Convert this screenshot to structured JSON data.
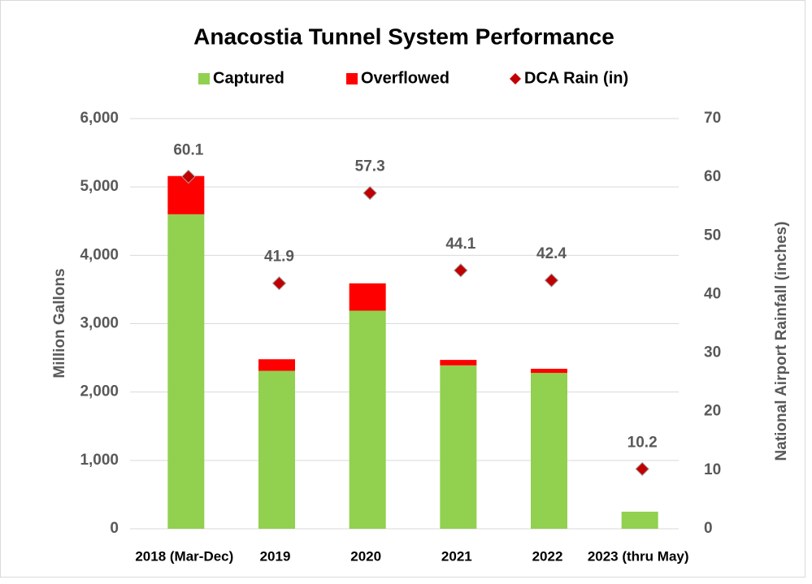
{
  "chart_data": {
    "type": "bar",
    "stacked": true,
    "title": "Anacostia Tunnel System Performance",
    "y_label": "Million Gallons",
    "y2_label": "National Airport Rainfall (inches)",
    "categories": [
      "2018 (Mar-Dec)",
      "2019",
      "2020",
      "2021",
      "2022",
      "2023 (thru May)"
    ],
    "series": [
      {
        "name": "Captured",
        "color": "#92d050",
        "values": [
          4600,
          2310,
          3190,
          2390,
          2280,
          250
        ]
      },
      {
        "name": "Overflowed",
        "color": "#ff0000",
        "values": [
          560,
          170,
          400,
          80,
          60,
          0
        ]
      },
      {
        "name": "DCA Rain (in)",
        "color": "#c00000",
        "type": "scatter",
        "marker": "diamond",
        "axis": "y2",
        "values": [
          60.1,
          41.9,
          57.3,
          44.1,
          42.4,
          10.2
        ]
      }
    ],
    "ylim": [
      0,
      6000
    ],
    "yticks": [
      0,
      {
        "value": 1000,
        "label": "1,000"
      },
      {
        "value": 2000,
        "label": "2,000"
      },
      {
        "value": 3000,
        "label": "3,000"
      },
      {
        "value": 4000,
        "label": "4,000"
      },
      {
        "value": 5000,
        "label": "5,000"
      },
      {
        "value": 6000,
        "label": "6,000"
      }
    ],
    "y2lim": [
      0,
      70
    ],
    "y2ticks": [
      0,
      10,
      20,
      30,
      40,
      50,
      60,
      70
    ],
    "grid": true,
    "legend": "top"
  }
}
